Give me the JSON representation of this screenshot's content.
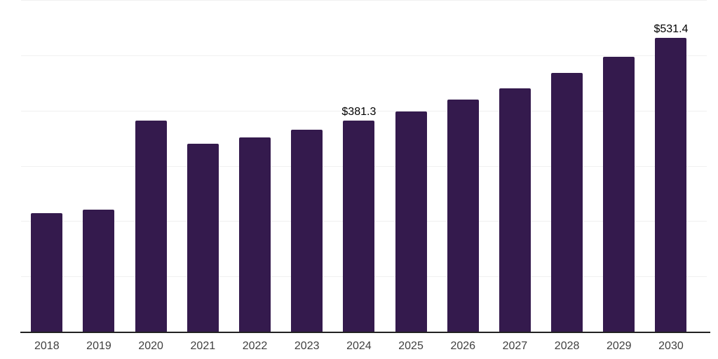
{
  "chart_data": {
    "type": "bar",
    "categories": [
      "2018",
      "2019",
      "2020",
      "2021",
      "2022",
      "2023",
      "2024",
      "2025",
      "2026",
      "2027",
      "2028",
      "2029",
      "2030"
    ],
    "values": [
      214.2,
      220.6,
      382.4,
      340.5,
      351.3,
      365.9,
      381.3,
      398.4,
      419.5,
      440.1,
      468.0,
      497.3,
      531.4
    ],
    "data_labels": {
      "2024": "$381.3",
      "2030": "$531.4"
    },
    "title": "",
    "xlabel": "",
    "ylabel": "",
    "ylim": [
      0,
      600
    ],
    "gridline_values": [
      100,
      200,
      300,
      400,
      500,
      600
    ],
    "grid": true,
    "legend": "none",
    "colors": {
      "bar": "#341a4d",
      "axis_line": "#222222",
      "gridline": "#f0f0f0",
      "x_label": "#3f3f3f",
      "value_label": "#000000",
      "background": "#ffffff"
    }
  }
}
